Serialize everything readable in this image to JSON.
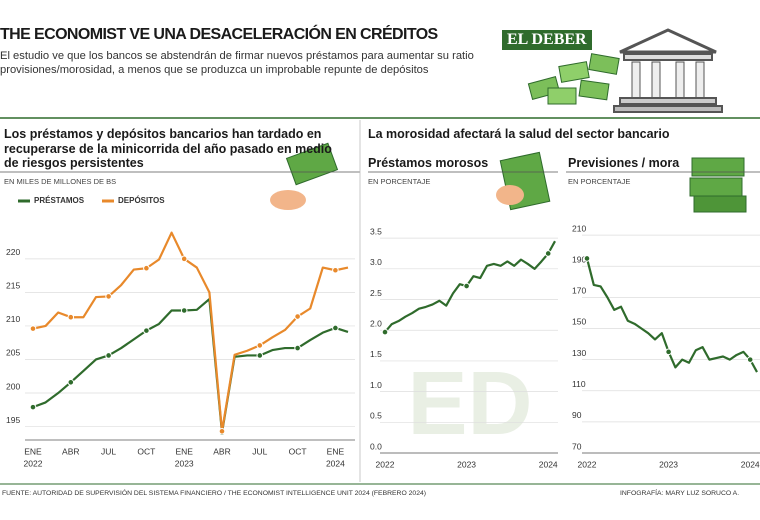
{
  "header": {
    "title": "THE ECONOMIST VE UNA DESACELERACIÓN EN CRÉDITOS",
    "subtitle": "El estudio ve que los bancos se abstendrán de firmar nuevos préstamos para aumentar su ratio provisiones/morosidad, a menos que se produzca un improbable repunte de depósitos",
    "logo": "EL DEBER"
  },
  "section_title": "La morosidad afectará la salud del sector bancario",
  "chart_data": [
    {
      "type": "line",
      "title": "Los préstamos y depósitos bancarios han tardado en recuperarse de la minicorrida del año pasado en medio de riesgos persistentes",
      "subtitle": "EN MILES DE MILLONES DE BS",
      "categories": [
        "ENE",
        null,
        null,
        "ABR",
        null,
        null,
        "JUL",
        null,
        null,
        "OCT",
        null,
        null,
        "ENE",
        null,
        null,
        "ABR",
        null,
        null,
        "JUL",
        null,
        null,
        "OCT",
        null,
        null,
        "ENE",
        null
      ],
      "category_years": [
        "2022",
        null,
        null,
        null,
        null,
        null,
        null,
        null,
        null,
        null,
        null,
        null,
        "2023",
        null,
        null,
        null,
        null,
        null,
        null,
        null,
        null,
        null,
        null,
        null,
        "2024",
        null
      ],
      "series": [
        {
          "name": "PRÉSTAMOS",
          "color": "#2f6b2c",
          "values": [
            197.9,
            198.6,
            200,
            201.6,
            203.3,
            205,
            205.6,
            206.7,
            208,
            209.3,
            210.3,
            212.3,
            212.3,
            212.4,
            214,
            194.1,
            205.4,
            205.6,
            205.6,
            206.4,
            206.7,
            206.7,
            207.9,
            209,
            209.7,
            209.1
          ]
        },
        {
          "name": "DEPÓSITOS",
          "color": "#e8892b",
          "values": [
            209.6,
            210,
            212,
            211.3,
            211.3,
            214.3,
            214.4,
            216.1,
            218.4,
            218.6,
            219.9,
            223.9,
            220,
            218.7,
            215,
            194.3,
            205.7,
            206.3,
            207.1,
            208.3,
            209.4,
            211.4,
            212.6,
            218.7,
            218.3,
            218.7
          ]
        }
      ],
      "ylim": [
        193,
        224
      ],
      "yticks": [
        195,
        200,
        205,
        210,
        215,
        220
      ],
      "grid": true
    },
    {
      "type": "line",
      "title": "Préstamos morosos",
      "subtitle": "EN PORCENTAJE",
      "categories": [
        "2022",
        null,
        null,
        null,
        null,
        null,
        null,
        null,
        null,
        null,
        null,
        null,
        "2023",
        null,
        null,
        null,
        null,
        null,
        null,
        null,
        null,
        null,
        null,
        null,
        "2024",
        null
      ],
      "values": [
        1.97,
        2.1,
        2.15,
        2.22,
        2.28,
        2.35,
        2.38,
        2.42,
        2.48,
        2.4,
        2.6,
        2.75,
        2.72,
        2.88,
        2.85,
        3.05,
        3.08,
        3.05,
        3.12,
        3.05,
        3.15,
        3.08,
        3.0,
        3.12,
        3.25,
        3.45
      ],
      "color": "#2f6b2c",
      "ylim": [
        0,
        3.6
      ],
      "yticks": [
        {
          "value": 0,
          "label": "0.0"
        },
        0.5,
        {
          "value": 1,
          "label": "1.0"
        },
        1.5,
        {
          "value": 2,
          "label": "2.0"
        },
        2.5,
        {
          "value": 3,
          "label": "3.0"
        },
        3.5
      ],
      "grid": true
    },
    {
      "type": "line",
      "title": "Previsiones / mora",
      "subtitle": "EN PORCENTAJE",
      "categories": [
        "2022",
        null,
        null,
        null,
        null,
        null,
        null,
        null,
        null,
        null,
        null,
        null,
        "2023",
        null,
        null,
        null,
        null,
        null,
        null,
        null,
        null,
        null,
        null,
        null,
        "2024",
        null
      ],
      "values": [
        195,
        178,
        177,
        170,
        162,
        164,
        155,
        153,
        150,
        147,
        143,
        147,
        135,
        125,
        130,
        128,
        136,
        138,
        130,
        131,
        132,
        130,
        133,
        135,
        130,
        122
      ],
      "color": "#2f6b2c",
      "ylim": [
        70,
        212
      ],
      "yticks": [
        70,
        90,
        110,
        130,
        150,
        170,
        190,
        210
      ],
      "grid": true
    }
  ],
  "footer": {
    "source": "FUENTE: AUTORIDAD DE SUPERVISIÓN DEL SISTEMA FINANCIERO / THE ECONOMIST INTELLIGENCE UNIT 2024 (FEBRERO 2024)",
    "credit": "INFOGRAFÍA: MARY LUZ SORUCO A."
  }
}
